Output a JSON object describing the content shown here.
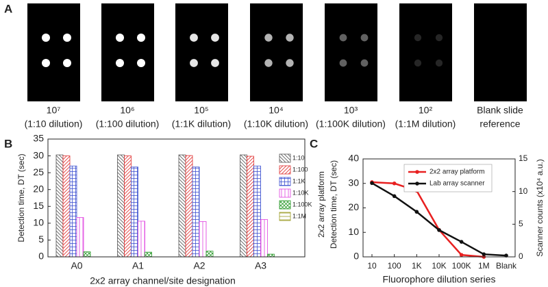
{
  "panel_a": {
    "label": "A",
    "images": [
      {
        "label": "10⁷",
        "caption": "(1:10 dilution)"
      },
      {
        "label": "10⁶",
        "caption": "(1:100 dilution)"
      },
      {
        "label": "10⁵",
        "caption": "(1:1K dilution)"
      },
      {
        "label": "10⁴",
        "caption": "(1:10K dilution)"
      },
      {
        "label": "10³",
        "caption": "(1:100K dilution)"
      },
      {
        "label": "10²",
        "caption": "(1:1M dilution)"
      },
      {
        "label": "Blank slide",
        "caption": "reference"
      }
    ]
  },
  "chart_data": [
    {
      "type": "bar",
      "panel_label": "B",
      "xlabel": "2x2 array channel/site designation",
      "ylabel": "Detection time, DT (sec)",
      "categories": [
        "A0",
        "A1",
        "A2",
        "A3"
      ],
      "series": [
        {
          "name": "1:10",
          "color": "#555555",
          "pattern": "diag-down",
          "values": [
            30.3,
            30.3,
            30.3,
            30.3
          ]
        },
        {
          "name": "1:100",
          "color": "#e03030",
          "pattern": "diag-up",
          "values": [
            30,
            30,
            30.1,
            29.9
          ]
        },
        {
          "name": "1:1K",
          "color": "#3a4fd0",
          "pattern": "grid",
          "values": [
            27,
            26.7,
            26.7,
            27
          ]
        },
        {
          "name": "1:10K",
          "color": "#e040e0",
          "pattern": "vertical",
          "values": [
            11.7,
            10.6,
            10.5,
            11.1
          ]
        },
        {
          "name": "1:100K",
          "color": "#2a9a2a",
          "pattern": "crosshatch",
          "values": [
            1.5,
            1.4,
            1.7,
            0.8
          ]
        },
        {
          "name": "1:1M",
          "color": "#9a9a20",
          "pattern": "horizontal",
          "values": [
            0,
            0,
            0,
            0
          ]
        }
      ],
      "ylim": [
        0,
        35
      ],
      "yticks": [
        0,
        5,
        10,
        15,
        20,
        25,
        30,
        35
      ],
      "legend": "upper right"
    },
    {
      "type": "line",
      "panel_label": "C",
      "xlabel": "Fluorophore dilution series",
      "ylabel": [
        "2x2 array platform",
        "Detection time, DT (sec)"
      ],
      "y2label": "Scanner counts (x10⁴ a.u.)",
      "categories": [
        "10",
        "100",
        "1K",
        "10K",
        "100K",
        "1M",
        "Blank"
      ],
      "series": [
        {
          "name": "2x2 array platform",
          "color": "#e82020",
          "values": [
            30.5,
            30,
            27,
            11,
            0.8,
            0,
            null
          ]
        },
        {
          "name": "Lab array scanner",
          "color": "#111111",
          "axis": "y2",
          "values": [
            11.3,
            9.3,
            6.9,
            4.1,
            2.3,
            0.4,
            0.2
          ]
        }
      ],
      "ylim": [
        0,
        40
      ],
      "yticks": [
        0,
        10,
        20,
        30,
        40
      ],
      "y2lim": [
        0,
        15
      ],
      "y2ticks": [
        0,
        5,
        10,
        15
      ],
      "legend": "upper right"
    }
  ]
}
